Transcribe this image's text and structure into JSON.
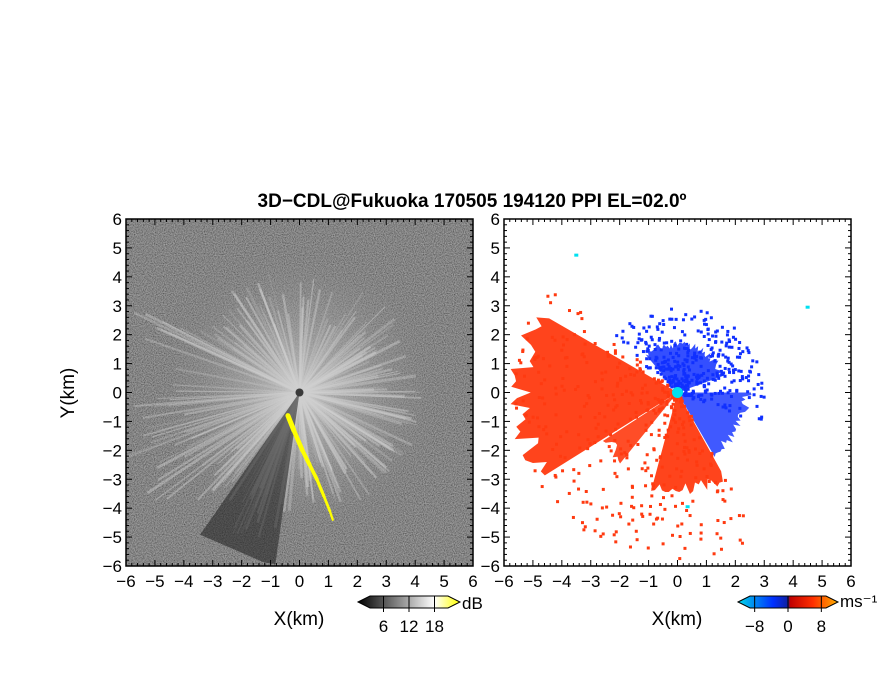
{
  "title": "3D−CDL@Fukuoka 170505 194120 PPI EL=02.0º",
  "chart_data": [
    {
      "type": "heatmap",
      "panel": "left",
      "field": "reflectivity / SNR",
      "xlabel": "X(km)",
      "ylabel": "Y(km)",
      "xlim": [
        -6,
        6
      ],
      "ylim": [
        -6,
        6
      ],
      "x_ticks": [
        "−6",
        "−5",
        "−4",
        "−3",
        "−2",
        "−1",
        "0",
        "1",
        "2",
        "3",
        "4",
        "5",
        "6"
      ],
      "y_ticks": [
        "6",
        "5",
        "4",
        "3",
        "2",
        "1",
        "0",
        "−1",
        "−2",
        "−3",
        "−4",
        "−5",
        "−6"
      ],
      "colorbar": {
        "unit": "dB",
        "tick_labels": [
          "6",
          "12",
          "18"
        ],
        "tick_values": [
          6,
          12,
          18
        ],
        "range": [
          0,
          24
        ],
        "colors": [
          "#000000",
          "#ffffff",
          "#ffff00"
        ]
      },
      "background_color": "#2a2a2a",
      "highlight_color": "#ffff00"
    },
    {
      "type": "heatmap",
      "panel": "right",
      "field": "radial velocity",
      "xlabel": "X(km)",
      "xlim": [
        -6,
        6
      ],
      "ylim": [
        -6,
        6
      ],
      "x_ticks": [
        "−6",
        "−5",
        "−4",
        "−3",
        "−2",
        "−1",
        "0",
        "1",
        "2",
        "3",
        "4",
        "5",
        "6"
      ],
      "y_ticks": [
        "6",
        "5",
        "4",
        "3",
        "2",
        "1",
        "0",
        "−1",
        "−2",
        "−3",
        "−4",
        "−5",
        "−6"
      ],
      "colorbar": {
        "unit": "ms⁻¹",
        "tick_labels": [
          "−8",
          "0",
          "8"
        ],
        "tick_values": [
          -8,
          0,
          8
        ],
        "range": [
          -12,
          12
        ],
        "colors": [
          "#00d8e8",
          "#0030ff",
          "#ff3000",
          "#ffb000"
        ]
      },
      "approach_color": "#1030ff",
      "recede_color": "#ff3a10",
      "radar_marker_color": "#00e0f0"
    }
  ]
}
